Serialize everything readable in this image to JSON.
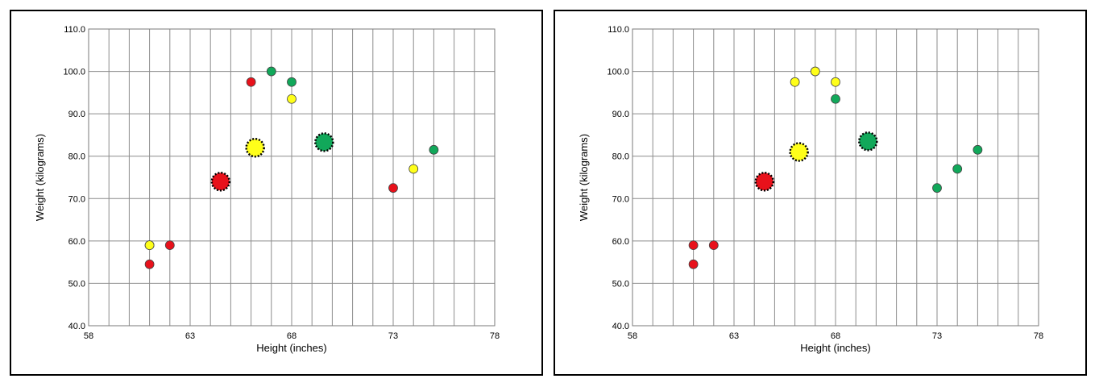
{
  "colors": {
    "red": "#e8111b",
    "yellow": "#ffff1a",
    "green": "#11a85a",
    "grid": "#8c8c8c"
  },
  "chart_data": [
    {
      "type": "scatter",
      "title": "",
      "xlabel": "Height (inches)",
      "ylabel": "Weight (kilograms)",
      "xlim": [
        58,
        78
      ],
      "ylim": [
        40,
        110
      ],
      "x_ticks": [
        58,
        59,
        60,
        61,
        62,
        63,
        64,
        65,
        66,
        67,
        68,
        69,
        70,
        71,
        72,
        73,
        74,
        75,
        76,
        77,
        78
      ],
      "x_tick_labels": [
        "58",
        "63",
        "68",
        "73",
        "78"
      ],
      "y_ticks": [
        40,
        50,
        60,
        70,
        80,
        90,
        100,
        110
      ],
      "y_tick_labels": [
        "40.0",
        "50.0",
        "60.0",
        "70.0",
        "80.0",
        "90.0",
        "100.0",
        "110.0"
      ],
      "grid": true,
      "legend": false,
      "series": [
        {
          "color": "red",
          "points": [
            [
              61,
              54.5
            ],
            [
              61,
              59
            ],
            [
              62,
              59
            ],
            [
              66,
              97.5
            ],
            [
              73,
              72.5
            ]
          ]
        },
        {
          "color": "yellow",
          "points": [
            [
              61,
              59
            ],
            [
              68,
              93.5
            ],
            [
              74,
              77
            ]
          ]
        },
        {
          "color": "green",
          "points": [
            [
              67,
              100
            ],
            [
              68,
              97.5
            ],
            [
              75,
              81.5
            ]
          ]
        }
      ],
      "centroids": [
        {
          "color": "red",
          "x": 64.5,
          "y": 74
        },
        {
          "color": "yellow",
          "x": 66.2,
          "y": 82
        },
        {
          "color": "green",
          "x": 69.6,
          "y": 83.3
        }
      ]
    },
    {
      "type": "scatter",
      "title": "",
      "xlabel": "Height (inches)",
      "ylabel": "Weight (kilograms)",
      "xlim": [
        58,
        78
      ],
      "ylim": [
        40,
        110
      ],
      "x_ticks": [
        58,
        59,
        60,
        61,
        62,
        63,
        64,
        65,
        66,
        67,
        68,
        69,
        70,
        71,
        72,
        73,
        74,
        75,
        76,
        77,
        78
      ],
      "x_tick_labels": [
        "58",
        "63",
        "68",
        "73",
        "78"
      ],
      "y_ticks": [
        40,
        50,
        60,
        70,
        80,
        90,
        100,
        110
      ],
      "y_tick_labels": [
        "40.0",
        "50.0",
        "60.0",
        "70.0",
        "80.0",
        "90.0",
        "100.0",
        "110.0"
      ],
      "grid": true,
      "legend": false,
      "series": [
        {
          "color": "red",
          "points": [
            [
              61,
              54.5
            ],
            [
              61,
              59
            ],
            [
              62,
              59
            ]
          ]
        },
        {
          "color": "yellow",
          "points": [
            [
              66,
              97.5
            ],
            [
              67,
              100
            ],
            [
              68,
              97.5
            ]
          ]
        },
        {
          "color": "green",
          "points": [
            [
              68,
              93.5
            ],
            [
              73,
              72.5
            ],
            [
              74,
              77
            ],
            [
              75,
              81.5
            ]
          ]
        }
      ],
      "centroids": [
        {
          "color": "red",
          "x": 64.5,
          "y": 74
        },
        {
          "color": "yellow",
          "x": 66.2,
          "y": 81
        },
        {
          "color": "green",
          "x": 69.6,
          "y": 83.5
        }
      ]
    }
  ]
}
